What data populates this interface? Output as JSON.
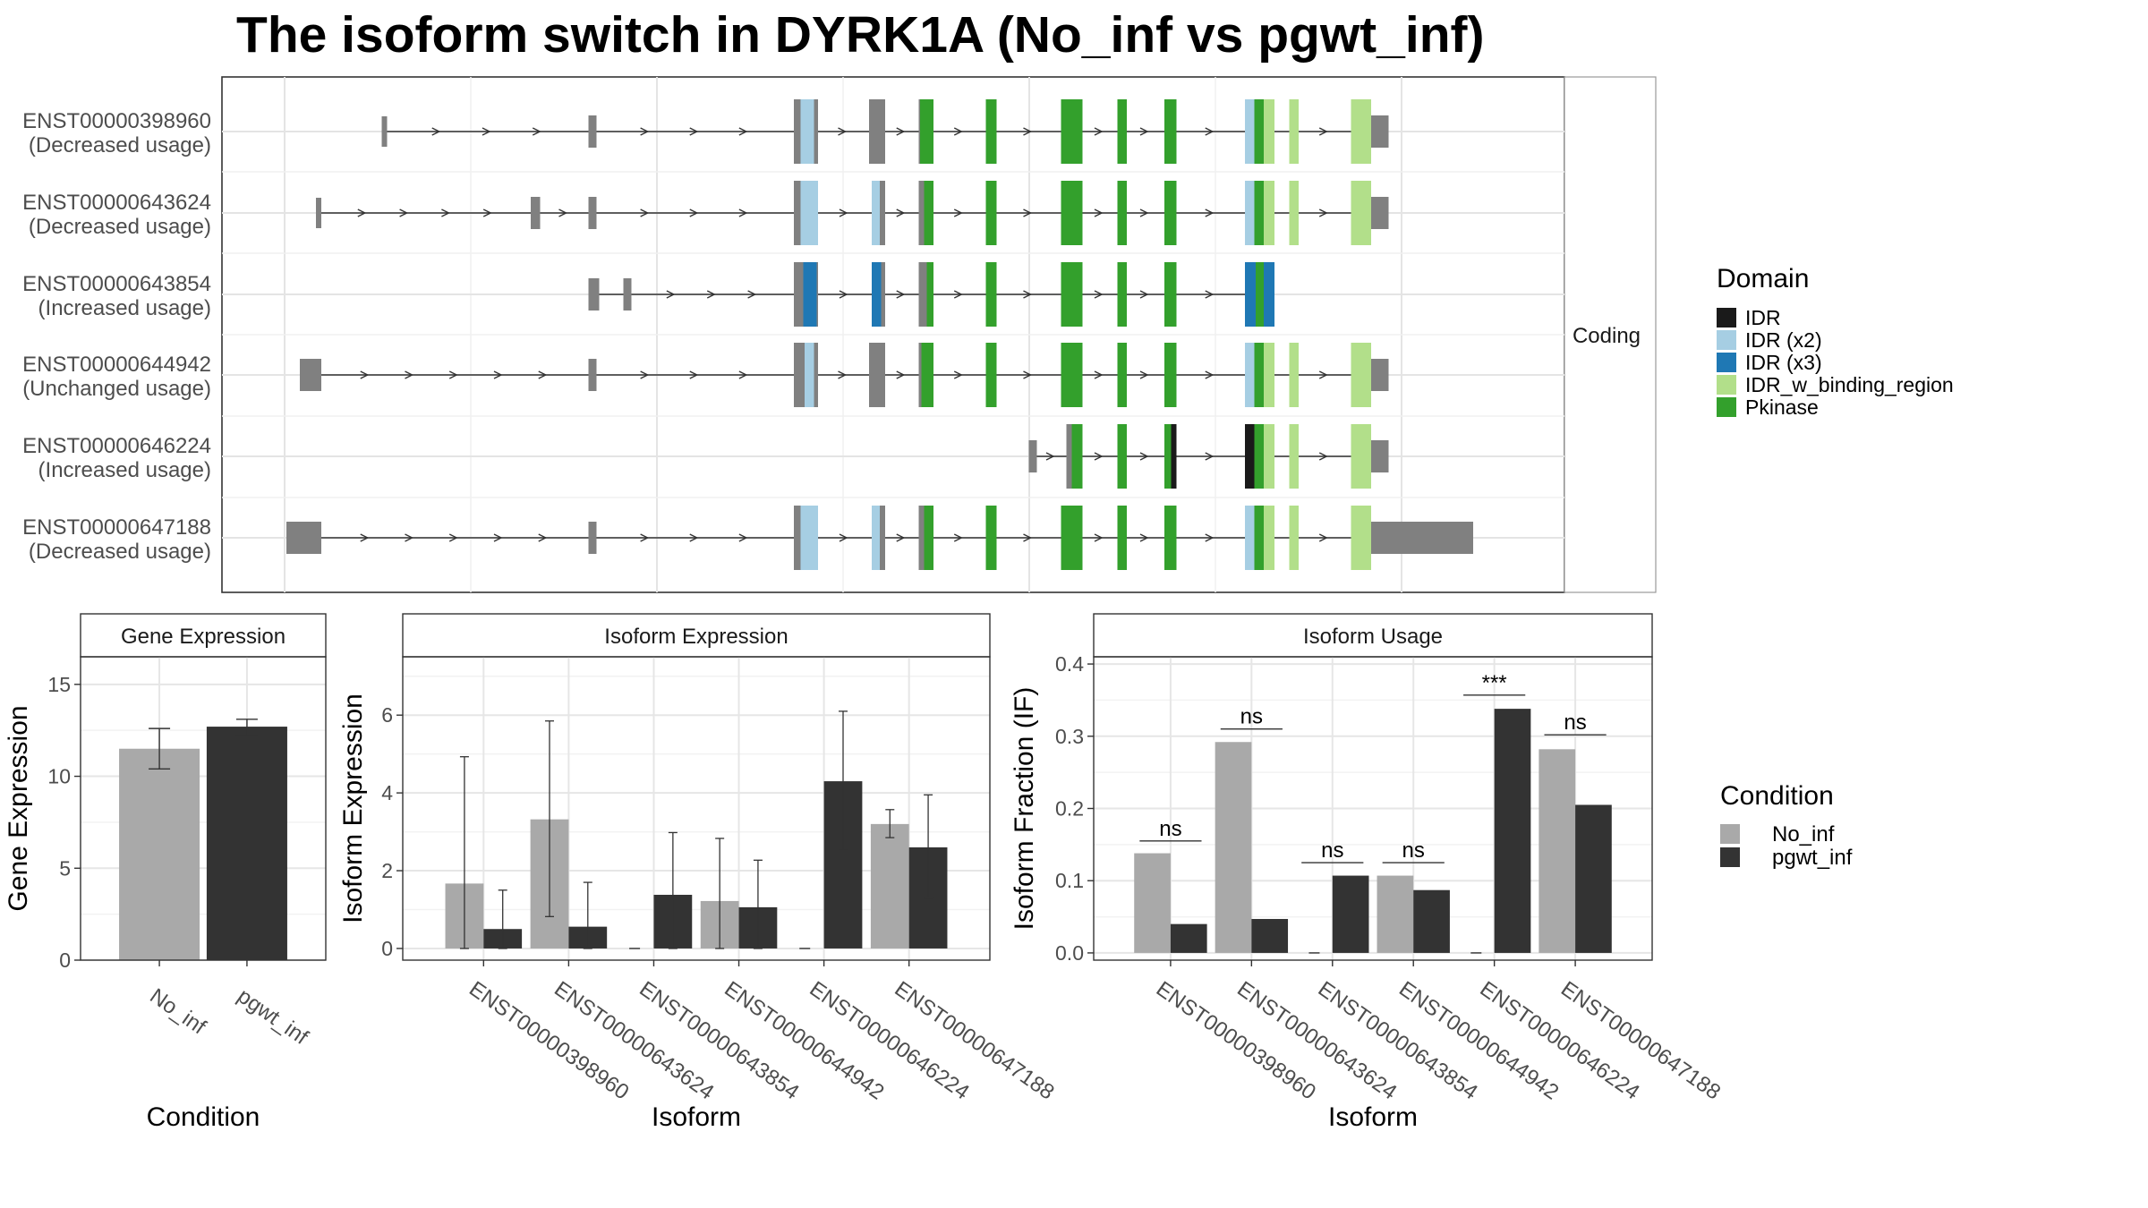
{
  "title": "The isoform switch in DYRK1A (No_inf vs pgwt_inf)",
  "colors": {
    "IDR": "#1a1a1a",
    "IDR (x2)": "#a6cee3",
    "IDR (x3)": "#1f78b4",
    "IDR_w_binding_region": "#b2df8a",
    "Pkinase": "#33a02c",
    "noncoding": "#808080",
    "No_inf": "#a9a9a9",
    "pgwt_inf": "#333333"
  },
  "structure": {
    "facet_label": "Coding",
    "legend_title": "Domain",
    "legend_items": [
      "IDR",
      "IDR (x2)",
      "IDR (x3)",
      "IDR_w_binding_region",
      "Pkinase"
    ],
    "transcripts": [
      {
        "id": "ENST00000398960",
        "usage": "(Decreased usage)",
        "exons": [
          [
            275,
            279,
            "small"
          ],
          [
            429,
            435,
            "mid"
          ],
          [
            582,
            600,
            "big"
          ],
          [
            638,
            650,
            "big"
          ],
          [
            675,
            686,
            "big"
          ],
          [
            725,
            733,
            "big"
          ],
          [
            781,
            797,
            "big"
          ],
          [
            823,
            830,
            "big"
          ],
          [
            858,
            867,
            "big"
          ],
          [
            918,
            940,
            "big"
          ],
          [
            951,
            958,
            "big"
          ],
          [
            997,
            1012,
            "big"
          ],
          [
            1012,
            1025,
            "utr"
          ]
        ],
        "domains": [
          [
            587,
            597,
            "IDR (x2)"
          ],
          [
            676,
            686,
            "Pkinase"
          ],
          [
            725,
            733,
            "Pkinase"
          ],
          [
            781,
            797,
            "Pkinase"
          ],
          [
            823,
            830,
            "Pkinase"
          ],
          [
            858,
            867,
            "Pkinase"
          ],
          [
            918,
            925,
            "IDR (x2)"
          ],
          [
            925,
            932,
            "Pkinase"
          ],
          [
            932,
            940,
            "IDR_w_binding_region"
          ],
          [
            951,
            958,
            "IDR_w_binding_region"
          ],
          [
            997,
            1012,
            "IDR_w_binding_region"
          ]
        ]
      },
      {
        "id": "ENST00000643624",
        "usage": "(Decreased usage)",
        "exons": [
          [
            226,
            230,
            "small"
          ],
          [
            386,
            393,
            "mid"
          ],
          [
            429,
            435,
            "mid"
          ],
          [
            582,
            600,
            "big"
          ],
          [
            640,
            650,
            "big"
          ],
          [
            675,
            686,
            "big"
          ],
          [
            725,
            733,
            "big"
          ],
          [
            781,
            797,
            "big"
          ],
          [
            823,
            830,
            "big"
          ],
          [
            858,
            867,
            "big"
          ],
          [
            918,
            940,
            "big"
          ],
          [
            951,
            958,
            "big"
          ],
          [
            997,
            1012,
            "big"
          ],
          [
            1012,
            1025,
            "utr"
          ]
        ],
        "domains": [
          [
            587,
            600,
            "IDR (x2)"
          ],
          [
            640,
            646,
            "IDR (x2)"
          ],
          [
            679,
            686,
            "Pkinase"
          ],
          [
            725,
            733,
            "Pkinase"
          ],
          [
            781,
            797,
            "Pkinase"
          ],
          [
            823,
            830,
            "Pkinase"
          ],
          [
            858,
            867,
            "Pkinase"
          ],
          [
            918,
            925,
            "IDR (x2)"
          ],
          [
            925,
            932,
            "Pkinase"
          ],
          [
            932,
            940,
            "IDR_w_binding_region"
          ],
          [
            951,
            958,
            "IDR_w_binding_region"
          ],
          [
            997,
            1012,
            "IDR_w_binding_region"
          ]
        ]
      },
      {
        "id": "ENST00000643854",
        "usage": "(Increased usage)",
        "exons": [
          [
            429,
            437,
            "mid"
          ],
          [
            455,
            461,
            "mid"
          ],
          [
            582,
            600,
            "big"
          ],
          [
            640,
            650,
            "big"
          ],
          [
            675,
            686,
            "big"
          ],
          [
            725,
            733,
            "big"
          ],
          [
            781,
            797,
            "big"
          ],
          [
            823,
            830,
            "big"
          ],
          [
            858,
            867,
            "big"
          ],
          [
            918,
            940,
            "big"
          ]
        ],
        "domains": [
          [
            589,
            599,
            "IDR (x3)"
          ],
          [
            640,
            647,
            "IDR (x3)"
          ],
          [
            681,
            686,
            "Pkinase"
          ],
          [
            725,
            733,
            "Pkinase"
          ],
          [
            781,
            797,
            "Pkinase"
          ],
          [
            823,
            830,
            "Pkinase"
          ],
          [
            858,
            867,
            "Pkinase"
          ],
          [
            918,
            926,
            "IDR (x3)"
          ],
          [
            926,
            932,
            "Pkinase"
          ],
          [
            932,
            940,
            "IDR (x3)"
          ]
        ]
      },
      {
        "id": "ENST00000644942",
        "usage": "(Unchanged usage)",
        "exons": [
          [
            214,
            230,
            "utr"
          ],
          [
            429,
            435,
            "mid"
          ],
          [
            582,
            600,
            "big"
          ],
          [
            638,
            650,
            "big"
          ],
          [
            675,
            686,
            "big"
          ],
          [
            725,
            733,
            "big"
          ],
          [
            781,
            797,
            "big"
          ],
          [
            823,
            830,
            "big"
          ],
          [
            858,
            867,
            "big"
          ],
          [
            918,
            940,
            "big"
          ],
          [
            951,
            958,
            "big"
          ],
          [
            997,
            1012,
            "big"
          ],
          [
            1012,
            1025,
            "utr"
          ]
        ],
        "domains": [
          [
            590,
            597,
            "IDR (x2)"
          ],
          [
            677,
            686,
            "Pkinase"
          ],
          [
            725,
            733,
            "Pkinase"
          ],
          [
            781,
            797,
            "Pkinase"
          ],
          [
            823,
            830,
            "Pkinase"
          ],
          [
            858,
            867,
            "Pkinase"
          ],
          [
            918,
            925,
            "IDR (x2)"
          ],
          [
            925,
            932,
            "Pkinase"
          ],
          [
            932,
            940,
            "IDR_w_binding_region"
          ],
          [
            951,
            958,
            "IDR_w_binding_region"
          ],
          [
            997,
            1012,
            "IDR_w_binding_region"
          ]
        ]
      },
      {
        "id": "ENST00000646224",
        "usage": "(Increased usage)",
        "exons": [
          [
            757,
            763,
            "mid"
          ],
          [
            785,
            797,
            "big"
          ],
          [
            823,
            830,
            "big"
          ],
          [
            858,
            867,
            "big"
          ],
          [
            918,
            940,
            "big"
          ],
          [
            951,
            958,
            "big"
          ],
          [
            997,
            1012,
            "big"
          ],
          [
            1012,
            1025,
            "utr"
          ]
        ],
        "domains": [
          [
            789,
            797,
            "Pkinase"
          ],
          [
            823,
            830,
            "Pkinase"
          ],
          [
            858,
            863,
            "Pkinase"
          ],
          [
            863,
            867,
            "IDR"
          ],
          [
            918,
            925,
            "IDR"
          ],
          [
            925,
            932,
            "Pkinase"
          ],
          [
            932,
            940,
            "IDR_w_binding_region"
          ],
          [
            951,
            958,
            "IDR_w_binding_region"
          ],
          [
            997,
            1012,
            "IDR_w_binding_region"
          ]
        ]
      },
      {
        "id": "ENST00000647188",
        "usage": "(Decreased usage)",
        "exons": [
          [
            204,
            230,
            "utr"
          ],
          [
            429,
            435,
            "mid"
          ],
          [
            582,
            600,
            "big"
          ],
          [
            640,
            650,
            "big"
          ],
          [
            675,
            686,
            "big"
          ],
          [
            725,
            733,
            "big"
          ],
          [
            781,
            797,
            "big"
          ],
          [
            823,
            830,
            "big"
          ],
          [
            858,
            867,
            "big"
          ],
          [
            918,
            940,
            "big"
          ],
          [
            951,
            958,
            "big"
          ],
          [
            997,
            1012,
            "big"
          ],
          [
            1012,
            1088,
            "utr"
          ]
        ],
        "domains": [
          [
            587,
            600,
            "IDR (x2)"
          ],
          [
            640,
            646,
            "IDR (x2)"
          ],
          [
            679,
            686,
            "Pkinase"
          ],
          [
            725,
            733,
            "Pkinase"
          ],
          [
            781,
            797,
            "Pkinase"
          ],
          [
            823,
            830,
            "Pkinase"
          ],
          [
            858,
            867,
            "Pkinase"
          ],
          [
            918,
            925,
            "IDR (x2)"
          ],
          [
            925,
            932,
            "Pkinase"
          ],
          [
            932,
            940,
            "IDR_w_binding_region"
          ],
          [
            951,
            958,
            "IDR_w_binding_region"
          ],
          [
            997,
            1012,
            "IDR_w_binding_region"
          ]
        ]
      }
    ]
  },
  "chart_data": [
    {
      "type": "bar",
      "title": "Gene Expression",
      "xlabel": "Condition",
      "ylabel": "Gene Expression",
      "categories": [
        "No_inf",
        "pgwt_inf"
      ],
      "values": [
        11.5,
        12.7
      ],
      "error_low": [
        10.4,
        12.2
      ],
      "error_high": [
        12.6,
        13.1
      ],
      "ylim": [
        0,
        16.5
      ],
      "yticks": [
        0,
        5,
        10,
        15
      ]
    },
    {
      "type": "bar",
      "title": "Isoform Expression",
      "xlabel": "Isoform",
      "ylabel": "Isoform Expression",
      "categories": [
        "ENST00000398960",
        "ENST00000643624",
        "ENST00000643854",
        "ENST00000644942",
        "ENST00000646224",
        "ENST00000647188"
      ],
      "series": [
        {
          "name": "No_inf",
          "values": [
            1.67,
            3.32,
            0,
            1.22,
            0,
            3.2
          ],
          "error_low": [
            0,
            0.82,
            0,
            0,
            0,
            2.85
          ],
          "error_high": [
            4.93,
            5.85,
            0,
            2.83,
            0,
            3.57
          ]
        },
        {
          "name": "pgwt_inf",
          "values": [
            0.5,
            0.56,
            1.38,
            1.06,
            4.3,
            2.6
          ],
          "error_low": [
            0,
            0,
            0,
            0,
            2.52,
            1.3
          ],
          "error_high": [
            1.5,
            1.7,
            2.98,
            2.27,
            6.1,
            3.95
          ]
        }
      ],
      "ylim": [
        -0.3,
        7.5
      ],
      "yticks": [
        0,
        2,
        4,
        6
      ]
    },
    {
      "type": "bar",
      "title": "Isoform Usage",
      "xlabel": "Isoform",
      "ylabel": "Isoform Fraction (IF)",
      "categories": [
        "ENST00000398960",
        "ENST00000643624",
        "ENST00000643854",
        "ENST00000644942",
        "ENST00000646224",
        "ENST00000647188"
      ],
      "series": [
        {
          "name": "No_inf",
          "values": [
            0.138,
            0.292,
            0,
            0.107,
            0,
            0.282
          ]
        },
        {
          "name": "pgwt_inf",
          "values": [
            0.04,
            0.047,
            0.107,
            0.087,
            0.338,
            0.205
          ]
        }
      ],
      "significance": [
        "ns",
        "ns",
        "ns",
        "ns",
        "***",
        "ns"
      ],
      "sig_y": [
        0.155,
        0.31,
        0.125,
        0.125,
        0.357,
        0.302
      ],
      "ylim": [
        -0.01,
        0.41
      ],
      "yticks": [
        0.0,
        0.1,
        0.2,
        0.3,
        0.4
      ],
      "ytick_labels": [
        "0.0",
        "0.1",
        "0.2",
        "0.3",
        "0.4"
      ]
    }
  ],
  "condition_legend": {
    "title": "Condition",
    "items": [
      "No_inf",
      "pgwt_inf"
    ]
  }
}
